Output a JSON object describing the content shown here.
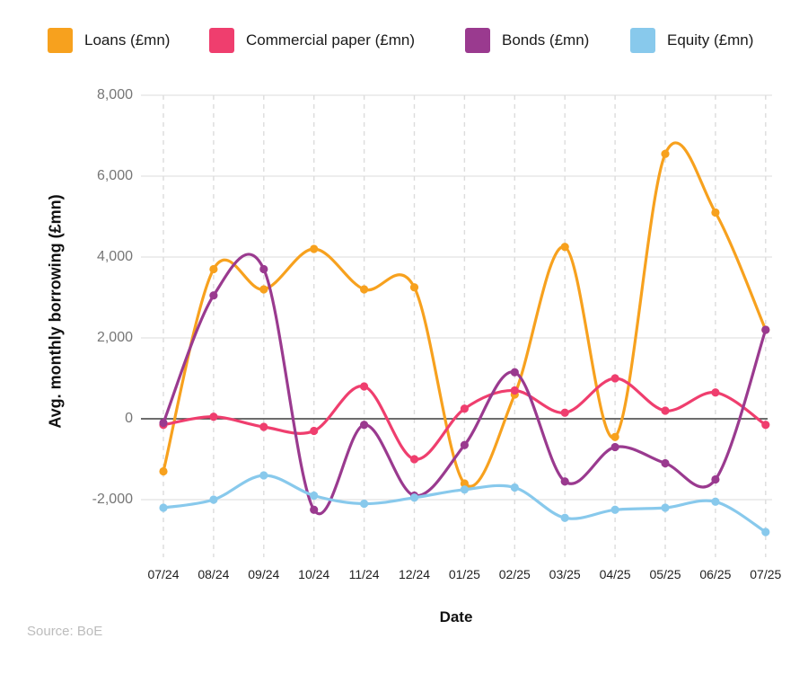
{
  "legend": [
    {
      "label": "Loans (£mn)",
      "color": "#F7A11E"
    },
    {
      "label": "Commercial paper (£mn)",
      "color": "#EF3E6E"
    },
    {
      "label": "Bonds (£mn)",
      "color": "#9A3A8F"
    },
    {
      "label": "Equity (£mn)",
      "color": "#88C9EC"
    }
  ],
  "source": "Source: BoE",
  "chart_data": {
    "type": "line",
    "title": "",
    "xlabel": "Date",
    "ylabel": "Avg. monthly borrowing (£mn)",
    "x_labels": [
      "07/24",
      "08/24",
      "09/24",
      "10/24",
      "11/24",
      "12/24",
      "01/25",
      "02/25",
      "03/25",
      "04/25",
      "05/25",
      "06/25",
      "07/25"
    ],
    "y_ticks": [
      {
        "value": 8000,
        "label": "8,000"
      },
      {
        "value": 6000,
        "label": "6,000"
      },
      {
        "value": 4000,
        "label": "4,000"
      },
      {
        "value": 2000,
        "label": "2,000"
      },
      {
        "value": 0,
        "label": "0"
      },
      {
        "value": -2000,
        "label": "-2,000"
      }
    ],
    "ylim": [
      -3400,
      8000
    ],
    "grid": {
      "horizontal": true,
      "vertical_dashed": true,
      "zero_line": true
    },
    "legend_position": "top",
    "marker": "circle",
    "curve": "smooth",
    "series": [
      {
        "name": "Loans (£mn)",
        "color": "#F7A11E",
        "values": [
          -1300,
          3700,
          3200,
          4200,
          3200,
          3250,
          -1600,
          600,
          4250,
          -450,
          6550,
          5100,
          2200
        ]
      },
      {
        "name": "Commercial paper (£mn)",
        "color": "#EF3E6E",
        "values": [
          -150,
          50,
          -200,
          -300,
          800,
          -1000,
          250,
          700,
          150,
          1000,
          200,
          650,
          -150
        ]
      },
      {
        "name": "Bonds (£mn)",
        "color": "#9A3A8F",
        "values": [
          -100,
          3050,
          3700,
          -2250,
          -150,
          -1900,
          -650,
          1150,
          -1550,
          -700,
          -1100,
          -1500,
          2200
        ]
      },
      {
        "name": "Equity (£mn)",
        "color": "#88C9EC",
        "values": [
          -2200,
          -2000,
          -1400,
          -1900,
          -2100,
          -1950,
          -1750,
          -1700,
          -2450,
          -2250,
          -2200,
          -2050,
          -2800
        ]
      }
    ]
  }
}
